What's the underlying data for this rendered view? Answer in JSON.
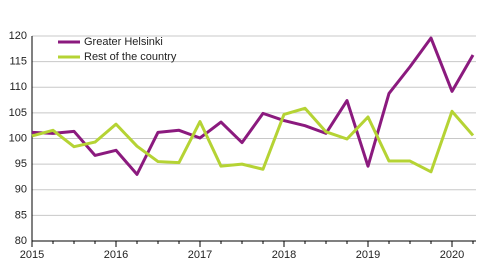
{
  "chart_data": {
    "type": "line",
    "categories": [
      "2015",
      null,
      null,
      null,
      "2016",
      null,
      null,
      null,
      "2017",
      null,
      null,
      null,
      "2018",
      null,
      null,
      null,
      "2019",
      null,
      null,
      null,
      "2020",
      null
    ],
    "series": [
      {
        "name": "Greater Helsinki",
        "color": "#8b1a7e",
        "values": [
          101.2,
          101,
          101.4,
          96.7,
          97.7,
          93,
          101.2,
          101.6,
          100.1,
          103.2,
          99.2,
          104.9,
          103.5,
          102.5,
          101,
          107.4,
          94.6,
          108.8,
          114,
          119.6,
          109.2,
          116.3
        ]
      },
      {
        "name": "Rest of the country",
        "color": "#b5d334",
        "values": [
          100.5,
          101.6,
          98.4,
          99.3,
          102.8,
          98.5,
          95.5,
          95.3,
          103.3,
          94.6,
          95,
          94,
          104.7,
          105.9,
          101.3,
          99.9,
          104.2,
          95.6,
          95.6,
          93.5,
          105.3,
          100.6
        ]
      }
    ],
    "ylim": [
      80,
      120
    ],
    "yticks": [
      80,
      85,
      90,
      95,
      100,
      105,
      110,
      115,
      120
    ],
    "grid": true,
    "legend": "top-left"
  }
}
